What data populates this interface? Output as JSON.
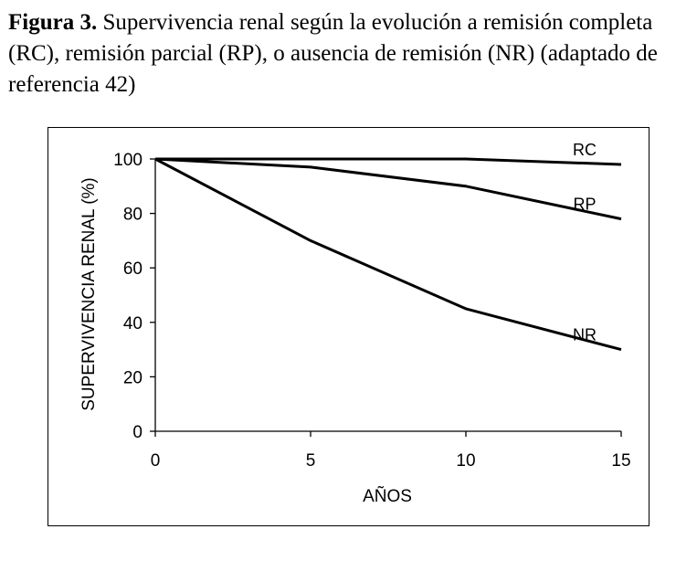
{
  "caption": {
    "lead": "Figura 3.",
    "text": "Supervivencia renal según la evolución a remisión completa (RC), remisión parcial (RP), o ausencia de remisión (NR) (adaptado de referencia 42)"
  },
  "chart_data": {
    "type": "line",
    "title": "",
    "xlabel": "AÑOS",
    "ylabel": "SUPERVIVENCIA RENAL (%)",
    "xlim": [
      0,
      15
    ],
    "ylim": [
      0,
      100
    ],
    "xticks": [
      0,
      5,
      10,
      15
    ],
    "yticks": [
      0,
      20,
      40,
      60,
      80,
      100
    ],
    "grid": false,
    "series": [
      {
        "name": "RC",
        "x": [
          0,
          5,
          10,
          15
        ],
        "y": [
          100,
          100,
          100,
          98
        ]
      },
      {
        "name": "RP",
        "x": [
          0,
          5,
          10,
          15
        ],
        "y": [
          100,
          97,
          90,
          78
        ]
      },
      {
        "name": "NR",
        "x": [
          0,
          5,
          10,
          15
        ],
        "y": [
          100,
          70,
          45,
          30
        ]
      }
    ],
    "line_color": "#000000"
  }
}
